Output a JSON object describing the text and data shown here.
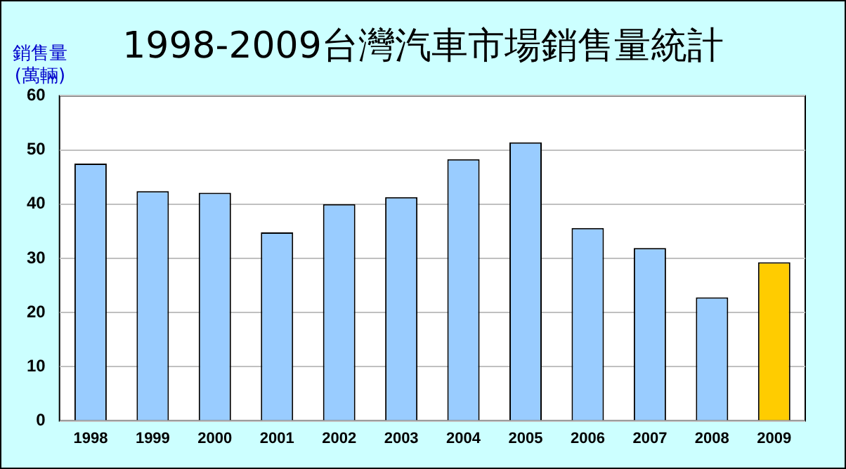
{
  "chart_data": {
    "type": "bar",
    "title": "1998-2009台灣汽車市場銷售量統計",
    "ylabel": "銷售量\n(萬輛)",
    "categories": [
      "1998",
      "1999",
      "2000",
      "2001",
      "2002",
      "2003",
      "2004",
      "2005",
      "2006",
      "2007",
      "2008",
      "2009"
    ],
    "values": [
      47.5,
      42.4,
      42.1,
      34.8,
      40.0,
      41.3,
      48.3,
      51.4,
      35.6,
      31.9,
      22.8,
      29.3
    ],
    "colors": [
      "#99ccff",
      "#99ccff",
      "#99ccff",
      "#99ccff",
      "#99ccff",
      "#99ccff",
      "#99ccff",
      "#99ccff",
      "#99ccff",
      "#99ccff",
      "#99ccff",
      "#ffcc00"
    ],
    "ylim": [
      0,
      60
    ],
    "yticks": [
      0,
      10,
      20,
      30,
      40,
      50,
      60
    ],
    "grid": "y",
    "legend": false
  }
}
